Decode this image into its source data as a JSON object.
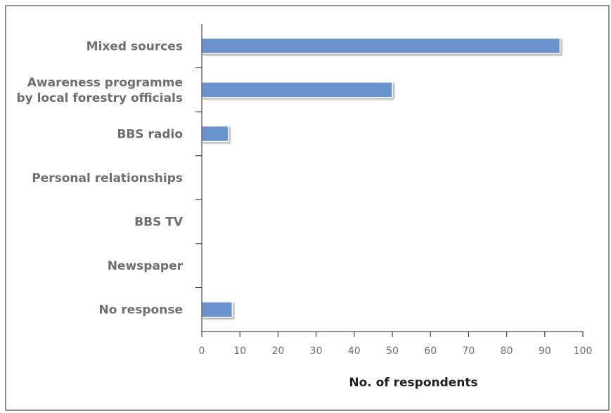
{
  "chart_data": {
    "type": "bar",
    "orientation": "horizontal",
    "categories": [
      [
        "Mixed sources"
      ],
      [
        "Awareness programme",
        "by local forestry officials"
      ],
      [
        "BBS radio"
      ],
      [
        "Personal relationships"
      ],
      [
        "BBS TV"
      ],
      [
        "Newspaper"
      ],
      [
        "No response"
      ]
    ],
    "values": [
      94,
      50,
      7,
      0,
      0,
      0,
      8
    ],
    "xlabel": "No. of respondents",
    "ylabel": "",
    "xlim": [
      0,
      100
    ],
    "xticks": [
      0,
      10,
      20,
      30,
      40,
      50,
      60,
      70,
      80,
      90,
      100
    ],
    "bar_color": "#6a92cc",
    "bar_edge_color": "#ffffff",
    "grid": false,
    "legend": "none"
  }
}
